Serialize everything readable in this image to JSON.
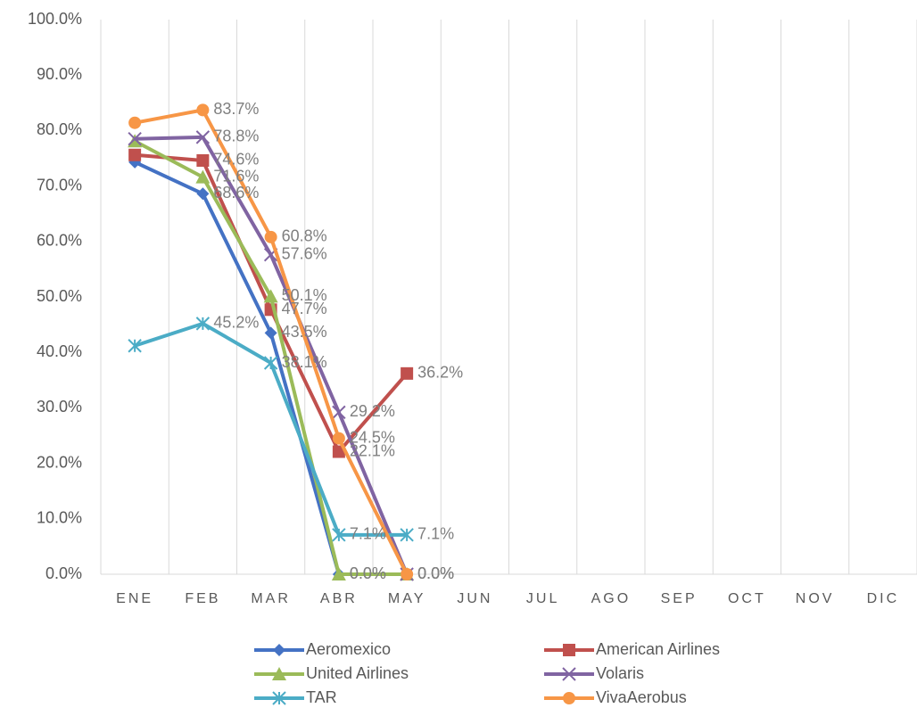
{
  "chart_data": {
    "type": "line",
    "categories": [
      "ENE",
      "FEB",
      "MAR",
      "ABR",
      "MAY",
      "JUN",
      "JUL",
      "AGO",
      "SEP",
      "OCT",
      "NOV",
      "DIC"
    ],
    "ylim": [
      0,
      100
    ],
    "yticks": [
      {
        "value": 0,
        "label": "0.0%"
      },
      {
        "value": 10,
        "label": "10.0%"
      },
      {
        "value": 20,
        "label": "20.0%"
      },
      {
        "value": 30,
        "label": "30.0%"
      },
      {
        "value": 40,
        "label": "40.0%"
      },
      {
        "value": 50,
        "label": "50.0%"
      },
      {
        "value": 60,
        "label": "60.0%"
      },
      {
        "value": 70,
        "label": "70.0%"
      },
      {
        "value": 80,
        "label": "80.0%"
      },
      {
        "value": 90,
        "label": "90.0%"
      },
      {
        "value": 100,
        "label": "100.0%"
      }
    ],
    "grid": true,
    "legend": "bottom",
    "series": [
      {
        "name": "Aeromexico",
        "color": "#4472c4",
        "marker": "diamond",
        "values": [
          74.3,
          68.6,
          43.5,
          0.0,
          null,
          null,
          null,
          null,
          null,
          null,
          null,
          null
        ],
        "value_labels": [
          null,
          "68.6%",
          "43.5%",
          "0.0%",
          null,
          null,
          null,
          null,
          null,
          null,
          null,
          null
        ]
      },
      {
        "name": "American Airlines",
        "color": "#c0504d",
        "marker": "square",
        "values": [
          75.6,
          74.6,
          47.7,
          22.1,
          36.2,
          null,
          null,
          null,
          null,
          null,
          null,
          null
        ],
        "value_labels": [
          null,
          "74.6%",
          "47.7%",
          "22.1%",
          "36.2%",
          null,
          null,
          null,
          null,
          null,
          null,
          null
        ]
      },
      {
        "name": "United Airlines",
        "color": "#9bbb59",
        "marker": "triangle",
        "values": [
          78.1,
          71.6,
          50.1,
          0.0,
          0.0,
          null,
          null,
          null,
          null,
          null,
          null,
          null
        ],
        "value_labels": [
          null,
          "71.6%",
          "50.1%",
          "0.0%",
          "0.0%",
          null,
          null,
          null,
          null,
          null,
          null,
          null
        ]
      },
      {
        "name": "Volaris",
        "color": "#8064a2",
        "marker": "x",
        "values": [
          78.5,
          78.8,
          57.6,
          29.2,
          0.0,
          null,
          null,
          null,
          null,
          null,
          null,
          null
        ],
        "value_labels": [
          null,
          "78.8%",
          "57.6%",
          "29.2%",
          "0.0%",
          null,
          null,
          null,
          null,
          null,
          null,
          null
        ]
      },
      {
        "name": "TAR",
        "color": "#4bacc6",
        "marker": "star",
        "values": [
          41.2,
          45.2,
          38.1,
          7.1,
          7.1,
          null,
          null,
          null,
          null,
          null,
          null,
          null
        ],
        "value_labels": [
          null,
          "45.2%",
          "38.1%",
          "7.1%",
          "7.1%",
          null,
          null,
          null,
          null,
          null,
          null,
          null
        ]
      },
      {
        "name": "VivaAerobus",
        "color": "#f79646",
        "marker": "circle",
        "values": [
          81.4,
          83.7,
          60.8,
          24.5,
          0.0,
          null,
          null,
          null,
          null,
          null,
          null,
          null
        ],
        "value_labels": [
          null,
          "83.7%",
          "60.8%",
          "24.5%",
          "0.0%",
          null,
          null,
          null,
          null,
          null,
          null,
          null
        ]
      }
    ]
  }
}
